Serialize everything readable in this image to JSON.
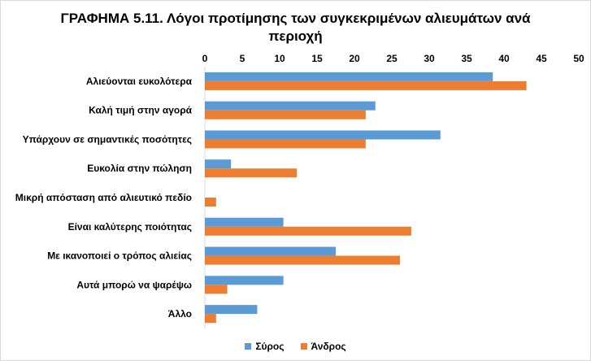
{
  "chart_data": {
    "type": "bar",
    "orientation": "horizontal",
    "title_lines": [
      "ΓΡΑΦΗΜΑ 5.11. Λόγοι προτίμησης των συγκεκριμένων αλιευμάτων ανά",
      "περιοχή"
    ],
    "categories": [
      "Αλιεύονται ευκολότερα",
      "Καλή τιμή στην αγορά",
      "Υπάρχουν σε σημαντικές ποσότητες",
      "Ευκολία στην πώληση",
      "Μικρή απόσταση από αλιευτικό πεδίο",
      "Είναι καλύτερης ποιότητας",
      "Με ικανοποιεί ο τρόπος αλιείας",
      "Αυτά μπορώ να ψαρέψω",
      "Άλλο"
    ],
    "series": [
      {
        "name": "Σύρος",
        "color": "#5b9bd5",
        "values": [
          38.5,
          22.8,
          31.5,
          3.5,
          0,
          10.5,
          17.5,
          10.5,
          7.0
        ]
      },
      {
        "name": "Άνδρος",
        "color": "#ed7d31",
        "values": [
          43.0,
          21.5,
          21.5,
          12.3,
          1.5,
          27.6,
          26.1,
          3.0,
          1.5
        ]
      }
    ],
    "xlim": [
      0,
      50
    ],
    "xticks": [
      0,
      5,
      10,
      15,
      20,
      25,
      30,
      35,
      40,
      45,
      50
    ],
    "xaxis_position": "top",
    "legend_position": "bottom",
    "grid": false
  }
}
